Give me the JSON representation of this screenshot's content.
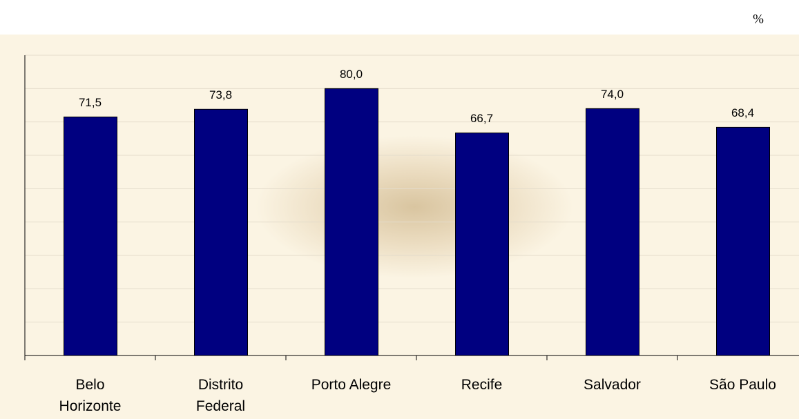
{
  "chart_data": {
    "type": "bar",
    "title": "%",
    "categories": [
      "Belo\nHorizonte",
      "Distrito\nFederal",
      "Porto Alegre",
      "Recife",
      "Salvador",
      "São Paulo"
    ],
    "values": [
      71.5,
      73.8,
      80.0,
      66.7,
      74.0,
      68.4
    ],
    "value_labels": [
      "71,5",
      "73,8",
      "80,0",
      "66,7",
      "74,0",
      "68,4"
    ],
    "color": "#000080",
    "ylim": [
      0,
      90
    ],
    "yticks": [
      0,
      10,
      20,
      30,
      40,
      50,
      60,
      70,
      80,
      90
    ],
    "grid": true
  }
}
